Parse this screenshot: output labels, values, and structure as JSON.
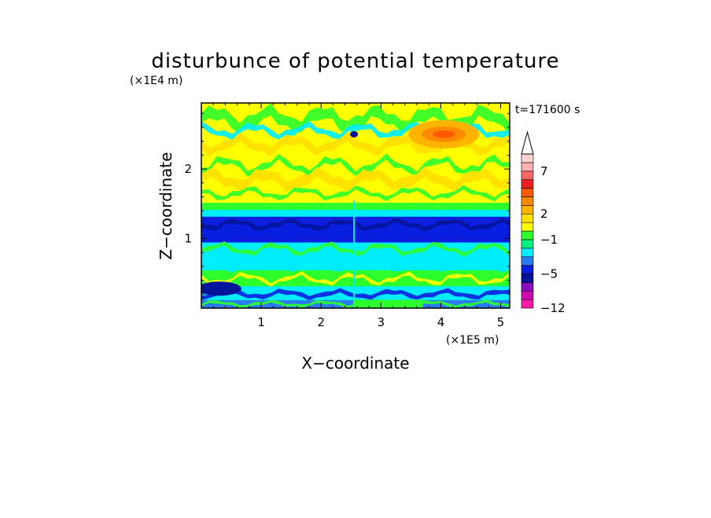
{
  "chart_data": {
    "type": "heatmap",
    "title": "disturbunce of potential temperature",
    "xlabel": "X−coordinate",
    "ylabel": "Z−coordinate",
    "x_scale_label": "(×1E5 m)",
    "y_scale_label": "(×1E4 m)",
    "time_label": "t=171600 s",
    "xlim": [
      0,
      5.15
    ],
    "ylim": [
      0,
      2.95
    ],
    "x_ticks": [
      1,
      2,
      3,
      4,
      5
    ],
    "y_ticks": [
      1,
      2
    ],
    "colorbar": {
      "levels": [
        -12,
        -10,
        -8,
        -7,
        -5,
        -4,
        -3,
        -2,
        -1,
        0,
        1,
        2,
        3,
        4,
        5,
        6,
        7,
        8,
        9,
        10
      ],
      "tick_labels": [
        "7",
        "2",
        "−1",
        "−5",
        "−12"
      ],
      "tick_values": [
        7,
        2,
        -1,
        -5,
        -12
      ],
      "colors": [
        "#ff1aa8",
        "#cc0cb0",
        "#8a0cc0",
        "#001499",
        "#0a1ee0",
        "#2a7af0",
        "#00ecff",
        "#00f080",
        "#2dff2d",
        "#ffff00",
        "#ffdf00",
        "#ffb400",
        "#ff8a00",
        "#ff5a00",
        "#f01e1e",
        "#ff6666",
        "#ffb0b0",
        "#ffd0d0"
      ],
      "extend": "top"
    },
    "bands": [
      {
        "z": [
          0.0,
          0.12
        ],
        "color": "#2a7af0"
      },
      {
        "z": [
          0.12,
          0.32
        ],
        "color": "#00ecff"
      },
      {
        "z": [
          0.32,
          0.55
        ],
        "color": "#2dff2d"
      },
      {
        "z": [
          0.55,
          0.72
        ],
        "color": "#00ecff"
      },
      {
        "z": [
          0.72,
          0.95
        ],
        "color": "#00ecff"
      },
      {
        "z": [
          0.95,
          1.32
        ],
        "color": "#0a1ee0"
      },
      {
        "z": [
          1.32,
          1.42
        ],
        "color": "#00ecff"
      },
      {
        "z": [
          1.42,
          1.52
        ],
        "color": "#2dff2d"
      },
      {
        "z": [
          1.52,
          2.95
        ],
        "color": "#ffff00"
      }
    ],
    "features": [
      {
        "type": "warm_max",
        "x": 4.05,
        "z": 2.5,
        "value": 6
      },
      {
        "type": "cold_min",
        "x": 0.3,
        "z": 0.28,
        "value": -5
      },
      {
        "type": "cold_spot",
        "x": 2.55,
        "z": 2.5,
        "value": -4
      }
    ]
  }
}
